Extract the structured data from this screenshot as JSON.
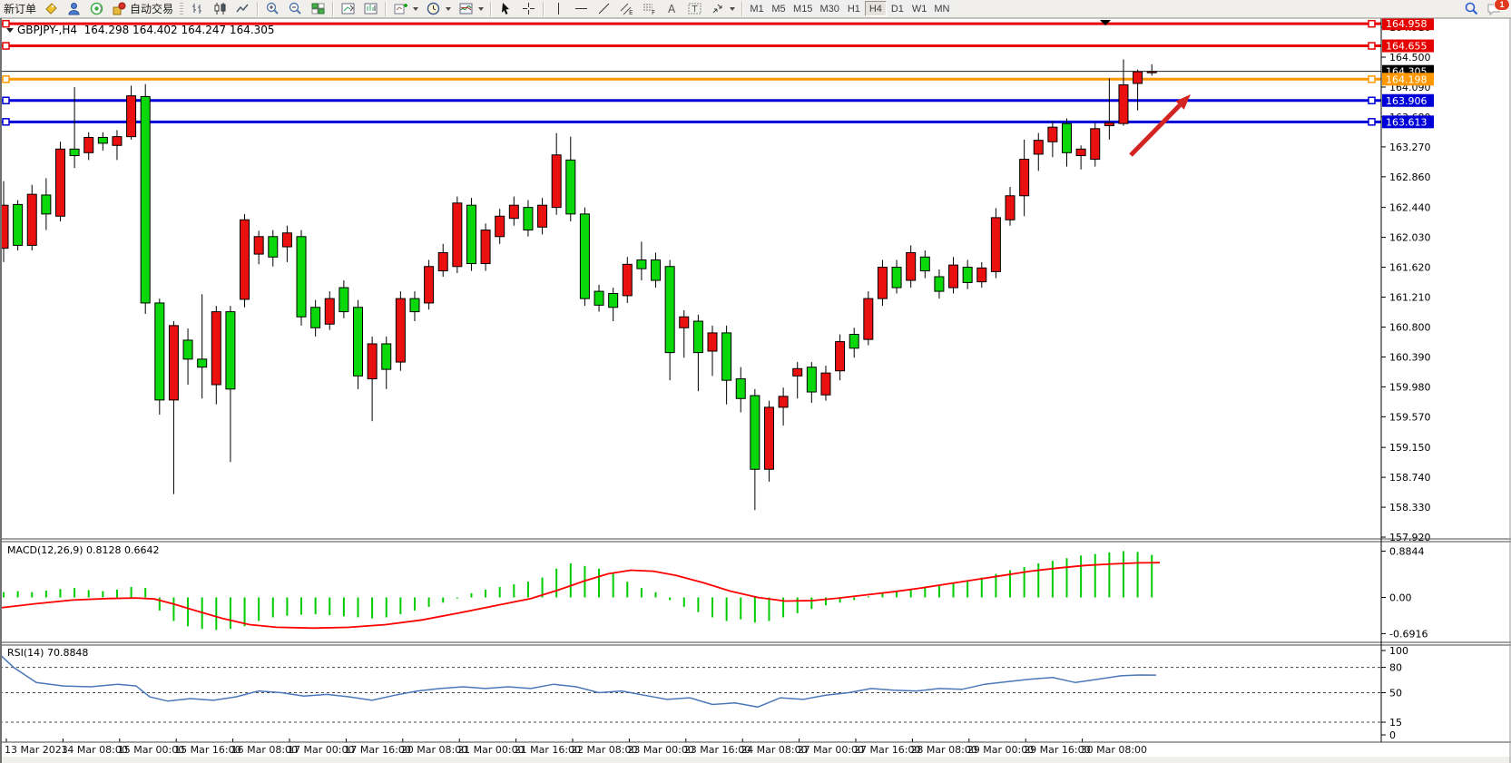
{
  "toolbar": {
    "new_order_label": "新订单",
    "autotrade_label": "自动交易",
    "timeframes": [
      "M1",
      "M5",
      "M15",
      "M30",
      "H1",
      "H4",
      "D1",
      "W1",
      "MN"
    ],
    "active_timeframe": "H4",
    "notification_badge": "1"
  },
  "chart_window": {
    "title": "GBPJPY-,H4  164.298 164.402 164.247 164.305",
    "symbol": "GBPJPY-",
    "timeframe": "H4",
    "open": "164.298",
    "high": "164.402",
    "low": "164.247",
    "close": "164.305"
  },
  "macd_panel": {
    "label": "MACD(12,26,9) 0.8128 0.6642",
    "axis_labels": [
      "0.8844",
      "0.00",
      "-0.6916"
    ]
  },
  "rsi_panel": {
    "label": "RSI(14) 70.8848",
    "axis_labels": [
      "100",
      "80",
      "50",
      "15",
      "0"
    ]
  },
  "colors": {
    "bull": "#ea1010",
    "bear": "#0bd80b",
    "wick": "#000000",
    "macd_hist": "#00cc00",
    "macd_signal": "#ff0000",
    "rsi_line": "#4a78b8",
    "hline_red": "#e60000",
    "hline_orange": "#ff9800",
    "hline_blue": "#0000d8",
    "current_price_line": "#222222",
    "arrow": "#d32424"
  },
  "chart_data": {
    "type": "candlestick",
    "symbol": "GBPJPY",
    "timeframe": "H4",
    "title": "GBPJPY-,H4  164.298 164.402 164.247 164.305",
    "price_ticks": [
      164.91,
      164.5,
      164.09,
      163.68,
      163.27,
      162.86,
      162.44,
      162.03,
      161.62,
      161.21,
      160.8,
      160.39,
      159.98,
      159.57,
      159.15,
      158.74,
      158.33,
      157.92
    ],
    "hlines": [
      {
        "price": 164.958,
        "label": "164.958",
        "color_key": "hline_red"
      },
      {
        "price": 164.655,
        "label": "164.655",
        "color_key": "hline_red"
      },
      {
        "price": 164.198,
        "label": "164.198",
        "color_key": "hline_orange"
      },
      {
        "price": 163.906,
        "label": "163.906",
        "color_key": "hline_blue"
      },
      {
        "price": 163.613,
        "label": "163.613",
        "color_key": "hline_blue"
      }
    ],
    "current_price_badge": {
      "price": 164.305,
      "label": "164.305",
      "color": "#000000"
    },
    "candles": [
      [
        161.88,
        162.8,
        161.69,
        162.47
      ],
      [
        162.48,
        162.54,
        161.85,
        161.92
      ],
      [
        161.92,
        162.75,
        161.85,
        162.62
      ],
      [
        162.61,
        162.84,
        162.13,
        162.35
      ],
      [
        162.32,
        163.34,
        162.25,
        163.24
      ],
      [
        163.24,
        164.09,
        162.98,
        163.15
      ],
      [
        163.19,
        163.47,
        163.09,
        163.4
      ],
      [
        163.4,
        163.47,
        163.22,
        163.32
      ],
      [
        163.29,
        163.5,
        163.09,
        163.41
      ],
      [
        163.41,
        164.11,
        163.37,
        163.97
      ],
      [
        163.96,
        164.13,
        160.98,
        161.13
      ],
      [
        161.13,
        161.19,
        159.6,
        159.8
      ],
      [
        159.8,
        160.88,
        158.51,
        160.82
      ],
      [
        160.62,
        160.78,
        160.01,
        160.36
      ],
      [
        160.36,
        161.25,
        159.82,
        160.25
      ],
      [
        160.01,
        161.09,
        159.74,
        161.01
      ],
      [
        161.01,
        161.09,
        158.95,
        159.95
      ],
      [
        161.18,
        162.35,
        161.07,
        162.27
      ],
      [
        161.8,
        162.12,
        161.66,
        162.04
      ],
      [
        162.04,
        162.13,
        161.63,
        161.76
      ],
      [
        161.9,
        162.19,
        161.69,
        162.09
      ],
      [
        162.04,
        162.13,
        160.82,
        160.94
      ],
      [
        161.07,
        161.17,
        160.67,
        160.79
      ],
      [
        160.84,
        161.29,
        160.76,
        161.19
      ],
      [
        161.34,
        161.44,
        160.92,
        161.01
      ],
      [
        161.07,
        161.17,
        159.95,
        160.13
      ],
      [
        160.09,
        160.67,
        159.51,
        160.57
      ],
      [
        160.57,
        160.67,
        159.95,
        160.22
      ],
      [
        160.32,
        161.29,
        160.2,
        161.19
      ],
      [
        161.19,
        161.29,
        160.88,
        161.01
      ],
      [
        161.13,
        161.72,
        161.04,
        161.63
      ],
      [
        161.57,
        161.94,
        161.49,
        161.82
      ],
      [
        161.63,
        162.59,
        161.54,
        162.5
      ],
      [
        162.47,
        162.57,
        161.57,
        161.67
      ],
      [
        161.67,
        162.22,
        161.57,
        162.13
      ],
      [
        162.04,
        162.42,
        161.94,
        162.32
      ],
      [
        162.29,
        162.59,
        162.19,
        162.47
      ],
      [
        162.44,
        162.54,
        162.04,
        162.13
      ],
      [
        162.17,
        162.57,
        162.07,
        162.47
      ],
      [
        162.44,
        163.46,
        162.34,
        163.16
      ],
      [
        163.09,
        163.41,
        162.25,
        162.35
      ],
      [
        162.35,
        162.44,
        161.09,
        161.19
      ],
      [
        161.29,
        161.38,
        161.01,
        161.1
      ],
      [
        161.26,
        161.34,
        160.88,
        161.07
      ],
      [
        161.23,
        161.76,
        161.13,
        161.66
      ],
      [
        161.72,
        161.97,
        161.44,
        161.6
      ],
      [
        161.72,
        161.82,
        161.34,
        161.44
      ],
      [
        161.63,
        161.72,
        160.07,
        160.45
      ],
      [
        160.79,
        161.03,
        160.38,
        160.94
      ],
      [
        160.88,
        160.97,
        159.92,
        160.45
      ],
      [
        160.47,
        160.82,
        160.13,
        160.72
      ],
      [
        160.72,
        160.82,
        159.74,
        160.07
      ],
      [
        160.09,
        160.25,
        159.63,
        159.82
      ],
      [
        159.86,
        159.95,
        158.29,
        158.85
      ],
      [
        158.85,
        159.79,
        158.68,
        159.7
      ],
      [
        159.7,
        159.97,
        159.45,
        159.85
      ],
      [
        160.13,
        160.32,
        159.82,
        160.23
      ],
      [
        160.25,
        160.32,
        159.76,
        159.91
      ],
      [
        159.87,
        160.27,
        159.79,
        160.17
      ],
      [
        160.2,
        160.7,
        160.07,
        160.6
      ],
      [
        160.7,
        160.79,
        160.38,
        160.51
      ],
      [
        160.63,
        161.29,
        160.55,
        161.19
      ],
      [
        161.19,
        161.72,
        161.09,
        161.62
      ],
      [
        161.62,
        161.72,
        161.26,
        161.34
      ],
      [
        161.44,
        161.92,
        161.34,
        161.82
      ],
      [
        161.76,
        161.85,
        161.47,
        161.57
      ],
      [
        161.49,
        161.59,
        161.19,
        161.29
      ],
      [
        161.34,
        161.76,
        161.26,
        161.65
      ],
      [
        161.62,
        161.72,
        161.32,
        161.41
      ],
      [
        161.42,
        161.69,
        161.34,
        161.61
      ],
      [
        161.56,
        162.43,
        161.47,
        162.3
      ],
      [
        162.27,
        162.72,
        162.19,
        162.6
      ],
      [
        162.6,
        163.37,
        162.32,
        163.1
      ],
      [
        163.17,
        163.46,
        162.94,
        163.36
      ],
      [
        163.34,
        163.62,
        163.13,
        163.54
      ],
      [
        163.59,
        163.66,
        163.0,
        163.19
      ],
      [
        163.15,
        163.29,
        162.96,
        163.24
      ],
      [
        163.1,
        163.6,
        163.0,
        163.52
      ],
      [
        163.56,
        164.21,
        163.37,
        163.6
      ],
      [
        163.59,
        164.47,
        163.56,
        164.12
      ],
      [
        164.14,
        164.33,
        163.77,
        164.3
      ],
      [
        164.298,
        164.402,
        164.247,
        164.305
      ]
    ],
    "macd": {
      "params": "12,26,9",
      "value": 0.8128,
      "signal_value": 0.6642,
      "axis_max": 0.8844,
      "axis_min": -0.6916,
      "histogram": [
        0.1,
        0.12,
        0.1,
        0.13,
        0.16,
        0.18,
        0.14,
        0.12,
        0.15,
        0.2,
        0.18,
        -0.25,
        -0.45,
        -0.55,
        -0.6,
        -0.62,
        -0.6,
        -0.55,
        -0.45,
        -0.38,
        -0.35,
        -0.33,
        -0.32,
        -0.34,
        -0.36,
        -0.38,
        -0.4,
        -0.38,
        -0.32,
        -0.25,
        -0.18,
        -0.1,
        -0.02,
        0.08,
        0.15,
        0.2,
        0.25,
        0.3,
        0.38,
        0.55,
        0.65,
        0.6,
        0.55,
        0.45,
        0.3,
        0.18,
        0.1,
        -0.05,
        -0.18,
        -0.28,
        -0.38,
        -0.45,
        -0.42,
        -0.48,
        -0.45,
        -0.38,
        -0.3,
        -0.22,
        -0.15,
        -0.1,
        -0.05,
        0.02,
        0.08,
        0.12,
        0.15,
        0.18,
        0.22,
        0.28,
        0.33,
        0.38,
        0.45,
        0.52,
        0.58,
        0.65,
        0.7,
        0.75,
        0.8,
        0.83,
        0.86,
        0.8844,
        0.87,
        0.8128
      ],
      "signal_line": [
        [
          0,
          -0.2
        ],
        [
          40,
          -0.12
        ],
        [
          80,
          -0.05
        ],
        [
          120,
          -0.02
        ],
        [
          150,
          -0.01
        ],
        [
          170,
          -0.03
        ],
        [
          190,
          -0.12
        ],
        [
          215,
          -0.25
        ],
        [
          245,
          -0.4
        ],
        [
          275,
          -0.52
        ],
        [
          305,
          -0.57
        ],
        [
          345,
          -0.585
        ],
        [
          385,
          -0.57
        ],
        [
          425,
          -0.52
        ],
        [
          465,
          -0.43
        ],
        [
          505,
          -0.3
        ],
        [
          545,
          -0.16
        ],
        [
          585,
          -0.02
        ],
        [
          615,
          0.14
        ],
        [
          645,
          0.32
        ],
        [
          670,
          0.45
        ],
        [
          695,
          0.52
        ],
        [
          720,
          0.5
        ],
        [
          745,
          0.42
        ],
        [
          775,
          0.28
        ],
        [
          805,
          0.12
        ],
        [
          835,
          0.0
        ],
        [
          865,
          -0.07
        ],
        [
          895,
          -0.06
        ],
        [
          925,
          -0.01
        ],
        [
          955,
          0.05
        ],
        [
          985,
          0.11
        ],
        [
          1015,
          0.18
        ],
        [
          1045,
          0.26
        ],
        [
          1075,
          0.34
        ],
        [
          1105,
          0.42
        ],
        [
          1135,
          0.5
        ],
        [
          1165,
          0.56
        ],
        [
          1195,
          0.61
        ],
        [
          1225,
          0.64
        ],
        [
          1255,
          0.66
        ],
        [
          1278,
          0.6642
        ]
      ]
    },
    "rsi": {
      "period": 14,
      "value": 70.8848,
      "levels": [
        80,
        50,
        15
      ],
      "points": [
        [
          0,
          95
        ],
        [
          15,
          80
        ],
        [
          40,
          62
        ],
        [
          70,
          58
        ],
        [
          100,
          57
        ],
        [
          130,
          60
        ],
        [
          150,
          58
        ],
        [
          165,
          45
        ],
        [
          185,
          40
        ],
        [
          210,
          43
        ],
        [
          235,
          41
        ],
        [
          260,
          45
        ],
        [
          285,
          52
        ],
        [
          310,
          50
        ],
        [
          335,
          46
        ],
        [
          360,
          48
        ],
        [
          385,
          45
        ],
        [
          410,
          41
        ],
        [
          435,
          47
        ],
        [
          460,
          52
        ],
        [
          485,
          55
        ],
        [
          510,
          57
        ],
        [
          535,
          55
        ],
        [
          560,
          57
        ],
        [
          585,
          55
        ],
        [
          610,
          60
        ],
        [
          635,
          57
        ],
        [
          660,
          50
        ],
        [
          685,
          52
        ],
        [
          710,
          47
        ],
        [
          735,
          42
        ],
        [
          760,
          44
        ],
        [
          785,
          36
        ],
        [
          810,
          38
        ],
        [
          835,
          33
        ],
        [
          860,
          44
        ],
        [
          885,
          42
        ],
        [
          910,
          47
        ],
        [
          935,
          50
        ],
        [
          960,
          55
        ],
        [
          985,
          53
        ],
        [
          1010,
          52
        ],
        [
          1035,
          55
        ],
        [
          1060,
          54
        ],
        [
          1085,
          60
        ],
        [
          1110,
          63
        ],
        [
          1135,
          66
        ],
        [
          1160,
          68
        ],
        [
          1185,
          62
        ],
        [
          1210,
          66
        ],
        [
          1235,
          70
        ],
        [
          1255,
          71
        ],
        [
          1274,
          70.89
        ]
      ]
    },
    "time_labels": [
      "13 Mar 2023",
      "14 Mar 08:00",
      "15 Mar 00:00",
      "15 Mar 16:00",
      "16 Mar 08:00",
      "17 Mar 00:00",
      "17 Mar 16:00",
      "20 Mar 08:00",
      "21 Mar 00:00",
      "21 Mar 16:00",
      "22 Mar 08:00",
      "23 Mar 00:00",
      "23 Mar 16:00",
      "24 Mar 08:00",
      "27 Mar 00:00",
      "27 Mar 16:00",
      "28 Mar 08:00",
      "29 Mar 00:00",
      "29 Mar 16:00",
      "30 Mar 08:00"
    ],
    "arrow_annotation": {
      "from_xy": [
        1246,
        171
      ],
      "to_xy": [
        1312,
        104
      ]
    }
  }
}
